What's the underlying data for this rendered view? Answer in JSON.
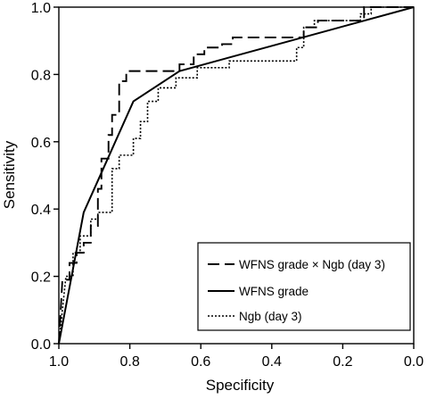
{
  "chart_data": {
    "type": "line",
    "title": "",
    "xlabel": "Specificity",
    "ylabel": "Sensitivity",
    "xlim": [
      1.0,
      0.0
    ],
    "ylim": [
      0.0,
      1.0
    ],
    "x_reversed": true,
    "grid": false,
    "legend_placement": "bottom-right",
    "x_ticks": [
      "1.0",
      "0.8",
      "0.6",
      "0.4",
      "0.2",
      "0.0"
    ],
    "y_ticks": [
      "0.0",
      "0.2",
      "0.4",
      "0.6",
      "0.8",
      "1.0"
    ],
    "series": [
      {
        "name": "WFNS grade × Ngb (day 3)",
        "line_style": "dashed",
        "color": "#000000",
        "points": [
          [
            1.0,
            0.0
          ],
          [
            0.99,
            0.19
          ],
          [
            0.97,
            0.19
          ],
          [
            0.97,
            0.24
          ],
          [
            0.95,
            0.24
          ],
          [
            0.95,
            0.27
          ],
          [
            0.93,
            0.27
          ],
          [
            0.93,
            0.3
          ],
          [
            0.91,
            0.3
          ],
          [
            0.91,
            0.35
          ],
          [
            0.89,
            0.35
          ],
          [
            0.89,
            0.46
          ],
          [
            0.88,
            0.46
          ],
          [
            0.88,
            0.55
          ],
          [
            0.86,
            0.55
          ],
          [
            0.86,
            0.62
          ],
          [
            0.85,
            0.62
          ],
          [
            0.85,
            0.68
          ],
          [
            0.83,
            0.68
          ],
          [
            0.83,
            0.78
          ],
          [
            0.81,
            0.78
          ],
          [
            0.81,
            0.81
          ],
          [
            0.66,
            0.81
          ],
          [
            0.66,
            0.83
          ],
          [
            0.62,
            0.83
          ],
          [
            0.62,
            0.86
          ],
          [
            0.59,
            0.86
          ],
          [
            0.59,
            0.88
          ],
          [
            0.54,
            0.88
          ],
          [
            0.54,
            0.89
          ],
          [
            0.51,
            0.89
          ],
          [
            0.51,
            0.91
          ],
          [
            0.31,
            0.91
          ],
          [
            0.31,
            0.94
          ],
          [
            0.27,
            0.94
          ],
          [
            0.27,
            0.96
          ],
          [
            0.14,
            0.96
          ],
          [
            0.14,
            1.0
          ],
          [
            0.0,
            1.0
          ]
        ]
      },
      {
        "name": "WFNS grade",
        "line_style": "solid",
        "color": "#000000",
        "points": [
          [
            1.0,
            0.0
          ],
          [
            0.93,
            0.39
          ],
          [
            0.79,
            0.72
          ],
          [
            0.66,
            0.81
          ],
          [
            0.0,
            1.0
          ]
        ]
      },
      {
        "name": "Ngb (day 3)",
        "line_style": "dotted",
        "color": "#000000",
        "points": [
          [
            1.0,
            0.0
          ],
          [
            0.98,
            0.2
          ],
          [
            0.96,
            0.2
          ],
          [
            0.96,
            0.27
          ],
          [
            0.94,
            0.27
          ],
          [
            0.94,
            0.32
          ],
          [
            0.91,
            0.32
          ],
          [
            0.91,
            0.37
          ],
          [
            0.89,
            0.37
          ],
          [
            0.89,
            0.39
          ],
          [
            0.85,
            0.39
          ],
          [
            0.85,
            0.52
          ],
          [
            0.83,
            0.52
          ],
          [
            0.83,
            0.56
          ],
          [
            0.79,
            0.56
          ],
          [
            0.79,
            0.61
          ],
          [
            0.77,
            0.61
          ],
          [
            0.77,
            0.66
          ],
          [
            0.75,
            0.66
          ],
          [
            0.75,
            0.72
          ],
          [
            0.72,
            0.72
          ],
          [
            0.72,
            0.76
          ],
          [
            0.67,
            0.76
          ],
          [
            0.67,
            0.79
          ],
          [
            0.61,
            0.79
          ],
          [
            0.61,
            0.82
          ],
          [
            0.52,
            0.82
          ],
          [
            0.52,
            0.84
          ],
          [
            0.33,
            0.84
          ],
          [
            0.33,
            0.88
          ],
          [
            0.31,
            0.88
          ],
          [
            0.31,
            0.94
          ],
          [
            0.28,
            0.94
          ],
          [
            0.28,
            0.96
          ],
          [
            0.15,
            0.96
          ],
          [
            0.15,
            0.98
          ],
          [
            0.12,
            0.98
          ],
          [
            0.12,
            1.0
          ],
          [
            0.0,
            1.0
          ]
        ]
      }
    ]
  }
}
